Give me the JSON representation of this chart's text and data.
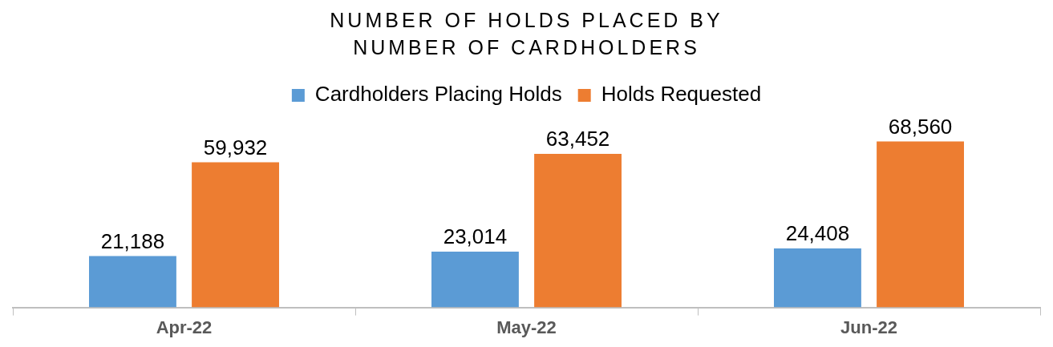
{
  "chart_data": {
    "type": "bar",
    "title": "NUMBER OF HOLDS PLACED BY NUMBER OF CARDHOLDERS",
    "categories": [
      "Apr-22",
      "May-22",
      "Jun-22"
    ],
    "series": [
      {
        "name": "Cardholders Placing Holds",
        "color": "#5b9bd5",
        "values": [
          21188,
          23014,
          24408
        ],
        "value_labels": [
          "21,188",
          "23,014",
          "24,408"
        ]
      },
      {
        "name": "Holds Requested",
        "color": "#ed7d31",
        "values": [
          59932,
          63452,
          68560
        ],
        "value_labels": [
          "59,932",
          "63,452",
          "68,560"
        ]
      }
    ],
    "legend": "top",
    "grid": false
  }
}
